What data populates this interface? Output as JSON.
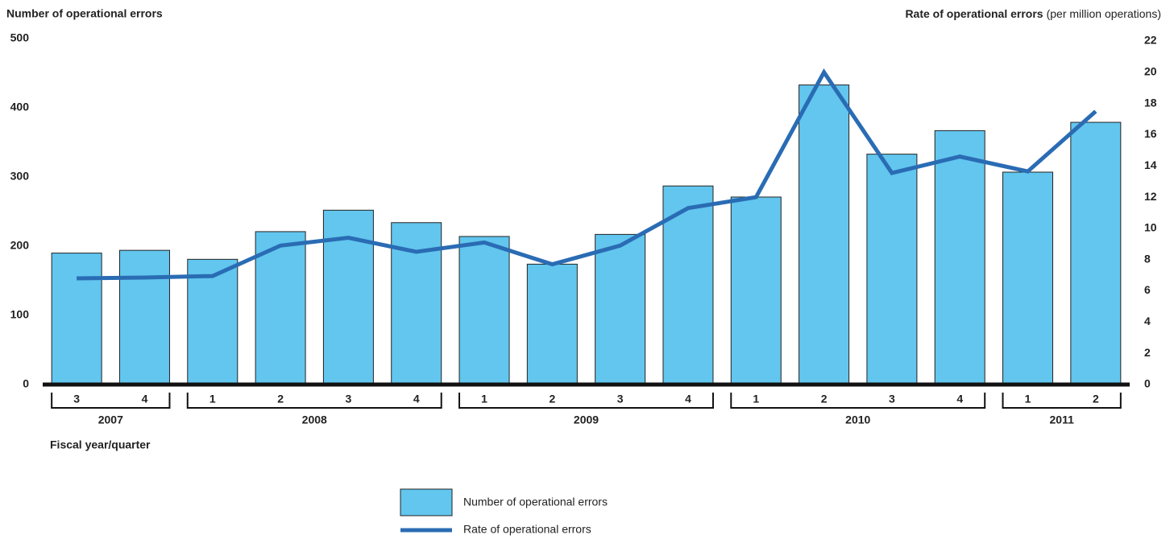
{
  "chart_data": {
    "type": "bar",
    "ylabel": "Number of operational errors",
    "y2label": "Rate of operational errors",
    "y2label_note": "(per million operations)",
    "xlabel": "Fiscal year/quarter",
    "categories": [
      "3",
      "4",
      "1",
      "2",
      "3",
      "4",
      "1",
      "2",
      "3",
      "4",
      "1",
      "2",
      "3",
      "4",
      "1",
      "2"
    ],
    "category_groups": [
      {
        "label": "2007",
        "span": 2
      },
      {
        "label": "2008",
        "span": 4
      },
      {
        "label": "2009",
        "span": 4
      },
      {
        "label": "2010",
        "span": 4
      },
      {
        "label": "2011",
        "span": 2
      }
    ],
    "series": [
      {
        "name": "Number of operational errors",
        "type": "bar",
        "color": "#62c6ee",
        "values": [
          190,
          194,
          181,
          221,
          252,
          234,
          214,
          174,
          217,
          287,
          271,
          433,
          333,
          367,
          307,
          379
        ]
      },
      {
        "name": "Rate of operational errors",
        "type": "line",
        "color": "#2a6cb4",
        "axis": "y2",
        "values": [
          6.8,
          6.85,
          6.95,
          8.9,
          9.4,
          8.5,
          9.1,
          7.7,
          8.9,
          11.3,
          12.0,
          20.0,
          13.55,
          14.6,
          13.65,
          17.5
        ]
      }
    ],
    "ylim": [
      0,
      500
    ],
    "yticks": [
      0,
      100,
      200,
      300,
      400,
      500
    ],
    "y2lim": [
      0,
      22
    ],
    "y2ticks": [
      0,
      2,
      4,
      6,
      8,
      10,
      12,
      14,
      16,
      18,
      20,
      22
    ]
  }
}
